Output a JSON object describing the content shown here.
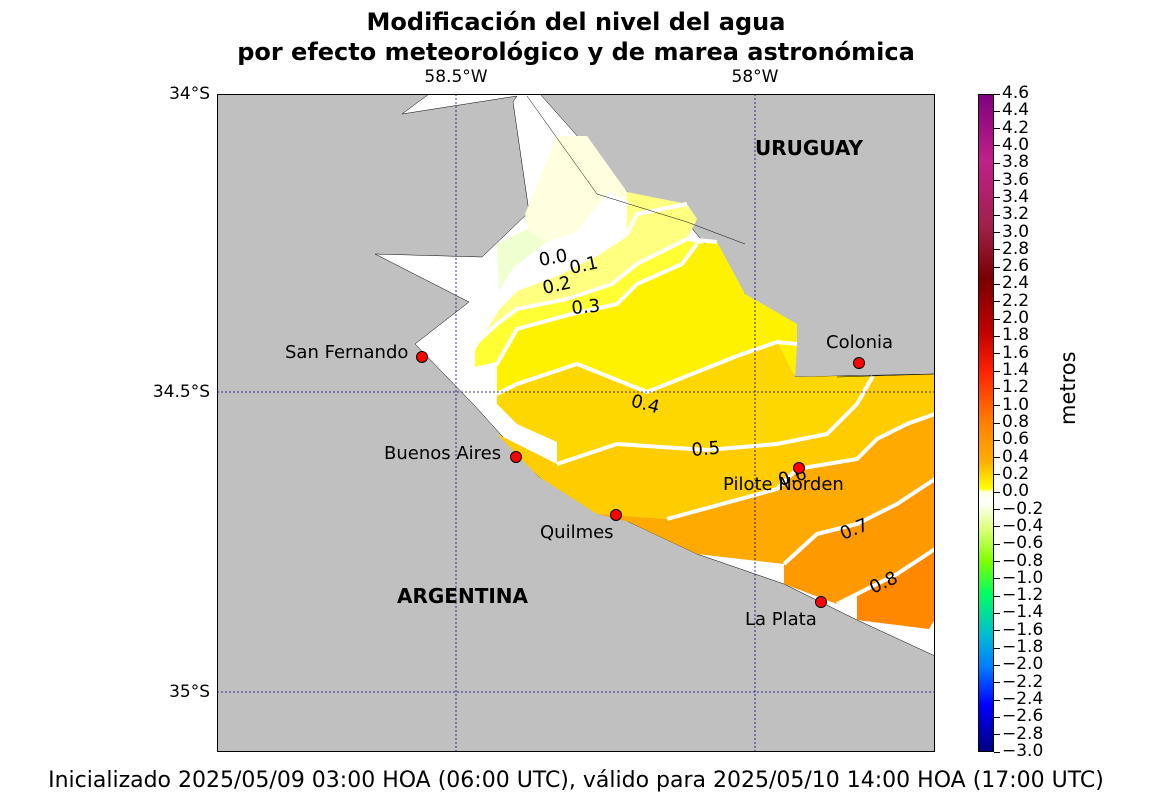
{
  "title": {
    "line1": "Modificación del nivel del agua",
    "line2": "por efecto meteorológico y de marea astronómica"
  },
  "map": {
    "lon_labels": [
      "58.5°W",
      "58°W"
    ],
    "lat_labels": [
      "34°S",
      "34.5°S",
      "35°S"
    ],
    "countries": [
      "URUGUAY",
      "ARGENTINA"
    ],
    "stations": [
      "San Fernando",
      "Buenos Aires",
      "Quilmes",
      "Pilote Norden",
      "La Plata",
      "Colonia"
    ],
    "contour_labels": [
      "0.0",
      "0.1",
      "0.2",
      "0.3",
      "0.4",
      "0.5",
      "0.6",
      "0.7",
      "0.8"
    ],
    "colors": {
      "land": "#c0c0c0",
      "water": "#ffffff",
      "grid": "#000080",
      "station": "#ff0000",
      "contour_line": "#ffffff"
    }
  },
  "colorbar": {
    "unit": "metros",
    "ticks": [
      "4.6",
      "4.4",
      "4.2",
      "4.0",
      "3.8",
      "3.6",
      "3.4",
      "3.2",
      "3.0",
      "2.8",
      "2.6",
      "2.4",
      "2.2",
      "2.0",
      "1.8",
      "1.6",
      "1.4",
      "1.2",
      "1.0",
      "0.8",
      "0.6",
      "0.4",
      "0.2",
      "0.0",
      "−0.2",
      "−0.4",
      "−0.6",
      "−0.8",
      "−1.0",
      "−1.2",
      "−1.4",
      "−1.6",
      "−1.8",
      "−2.0",
      "−2.2",
      "−2.4",
      "−2.6",
      "−2.8",
      "−3.0"
    ],
    "min": -3.0,
    "max": 4.6
  },
  "footer": "Inicializado 2025/05/09 03:00 HOA (06:00 UTC), válido para 2025/05/10 14:00 HOA (17:00 UTC)"
}
